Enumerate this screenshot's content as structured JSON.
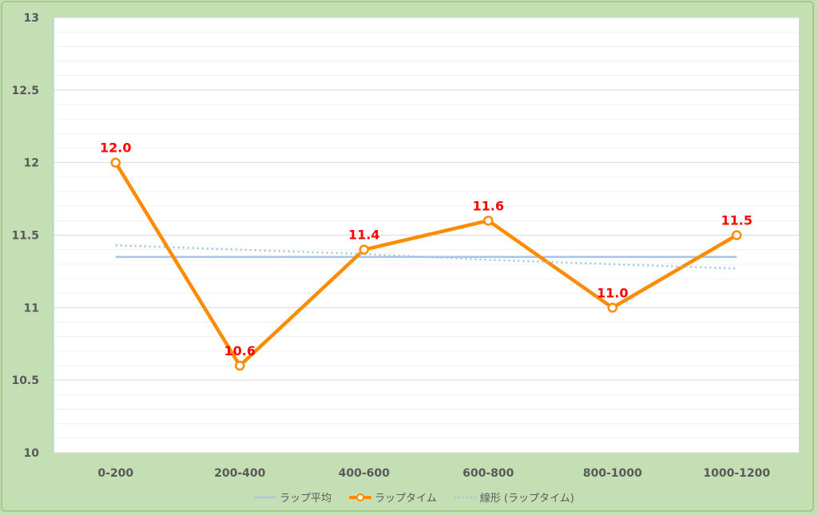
{
  "chart_data": {
    "type": "line",
    "categories": [
      "0-200",
      "200-400",
      "400-600",
      "600-800",
      "800-1000",
      "1000-1200"
    ],
    "ylim": [
      10,
      13
    ],
    "yticks": [
      "10",
      "10.5",
      "11",
      "11.5",
      "12",
      "12.5",
      "13"
    ],
    "grid": true,
    "legend_position": "bottom",
    "series": [
      {
        "name": "ラップ平均",
        "values": [
          11.35,
          11.35,
          11.35,
          11.35,
          11.35,
          11.35
        ],
        "color": "#a9c4e6",
        "style": "solid"
      },
      {
        "name": "ラップタイム",
        "values": [
          12.0,
          10.6,
          11.4,
          11.6,
          11.0,
          11.5
        ],
        "labels": [
          "12.0",
          "10.6",
          "11.4",
          "11.6",
          "11.0",
          "11.5"
        ],
        "color": "#ff8c00",
        "style": "solid-marker"
      },
      {
        "name": "線形 (ラップタイム)",
        "values": [
          11.43,
          11.4,
          11.37,
          11.33,
          11.3,
          11.27
        ],
        "color": "#9dc3e6",
        "style": "dotted"
      }
    ],
    "colors": {
      "label": "#ff0000",
      "plot_bg": "#ffffff",
      "frame_bg": "#c5dfb4"
    }
  }
}
